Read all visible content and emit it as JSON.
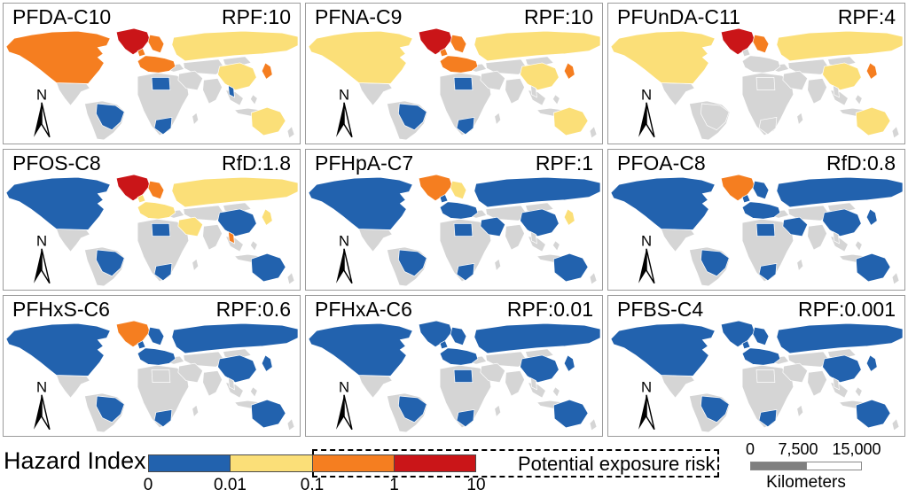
{
  "chart_data": {
    "type": "choropleth",
    "layout": "3x3 small multiples, world maps",
    "colors": {
      "blue": "#2262AE",
      "yellow": "#FBDF78",
      "orange": "#F57E20",
      "red": "#CA1518",
      "gray": "#D5D5D5"
    },
    "legend_bins": [
      {
        "color": "blue",
        "range": "0 to 0.01"
      },
      {
        "color": "yellow",
        "range": "0.01 to 0.1"
      },
      {
        "color": "orange",
        "range": "0.1 to 1"
      },
      {
        "color": "red",
        "range": "1 to 10"
      }
    ],
    "no_data_color": "gray",
    "panels": [
      {
        "compound": "PFDA-C10",
        "potency_label": "RPF:10",
        "regions": {
          "greenland": "red",
          "north_america": "orange",
          "brazil": "blue",
          "libya": "blue",
          "south_africa": "blue",
          "scandinavia": "orange",
          "western_europe": "orange",
          "russia": "yellow",
          "china": "yellow",
          "japan": "orange",
          "thailand": "blue",
          "middle_east": "gray",
          "australia": "yellow"
        }
      },
      {
        "compound": "PFNA-C9",
        "potency_label": "RPF:10",
        "regions": {
          "greenland": "red",
          "north_america": "yellow",
          "brazil": "blue",
          "libya": "blue",
          "south_africa": "blue",
          "scandinavia": "orange",
          "western_europe": "orange",
          "russia": "yellow",
          "china": "yellow",
          "japan": "orange",
          "thailand": "gray",
          "middle_east": "gray",
          "australia": "yellow"
        }
      },
      {
        "compound": "PFUnDA-C11",
        "potency_label": "RPF:4",
        "regions": {
          "greenland": "red",
          "north_america": "yellow",
          "brazil": "gray",
          "libya": "gray",
          "south_africa": "gray",
          "scandinavia": "orange",
          "western_europe": "gray",
          "russia": "yellow",
          "china": "yellow",
          "japan": "orange",
          "thailand": "gray",
          "middle_east": "gray",
          "australia": "yellow"
        }
      },
      {
        "compound": "PFOS-C8",
        "potency_label": "RfD:1.8",
        "regions": {
          "greenland": "red",
          "north_america": "blue",
          "brazil": "blue",
          "libya": "blue",
          "south_africa": "blue",
          "scandinavia": "orange",
          "western_europe": "yellow",
          "russia": "yellow",
          "china": "blue",
          "japan": "yellow",
          "thailand": "orange",
          "middle_east": "yellow",
          "australia": "blue"
        }
      },
      {
        "compound": "PFHpA-C7",
        "potency_label": "RPF:1",
        "regions": {
          "greenland": "orange",
          "north_america": "blue",
          "brazil": "blue",
          "libya": "blue",
          "south_africa": "blue",
          "scandinavia": "yellow",
          "western_europe": "blue",
          "russia": "blue",
          "china": "blue",
          "japan": "yellow",
          "thailand": "gray",
          "middle_east": "blue",
          "australia": "blue"
        }
      },
      {
        "compound": "PFOA-C8",
        "potency_label": "RfD:0.8",
        "regions": {
          "greenland": "orange",
          "north_america": "blue",
          "brazil": "blue",
          "libya": "blue",
          "south_africa": "blue",
          "scandinavia": "blue",
          "western_europe": "blue",
          "russia": "blue",
          "china": "blue",
          "japan": "blue",
          "thailand": "gray",
          "middle_east": "blue",
          "australia": "blue"
        }
      },
      {
        "compound": "PFHxS-C6",
        "potency_label": "RPF:0.6",
        "regions": {
          "greenland": "orange",
          "north_america": "blue",
          "brazil": "blue",
          "libya": "gray",
          "south_africa": "blue",
          "scandinavia": "blue",
          "western_europe": "blue",
          "russia": "blue",
          "china": "blue",
          "japan": "blue",
          "thailand": "gray",
          "middle_east": "gray",
          "australia": "blue"
        }
      },
      {
        "compound": "PFHxA-C6",
        "potency_label": "RPF:0.01",
        "regions": {
          "greenland": "blue",
          "north_america": "blue",
          "brazil": "blue",
          "libya": "blue",
          "south_africa": "blue",
          "scandinavia": "blue",
          "western_europe": "blue",
          "russia": "blue",
          "china": "blue",
          "japan": "blue",
          "thailand": "gray",
          "middle_east": "gray",
          "australia": "blue"
        }
      },
      {
        "compound": "PFBS-C4",
        "potency_label": "RPF:0.001",
        "regions": {
          "greenland": "blue",
          "north_america": "blue",
          "brazil": "blue",
          "libya": "gray",
          "south_africa": "blue",
          "scandinavia": "blue",
          "western_europe": "blue",
          "russia": "blue",
          "china": "blue",
          "japan": "blue",
          "thailand": "gray",
          "middle_east": "gray",
          "australia": "blue"
        }
      }
    ],
    "no_data_regions": [
      "mexico_central_america",
      "south_america_other",
      "africa_other",
      "turkey",
      "central_asia",
      "mongolia",
      "india",
      "southeast_asia"
    ]
  },
  "legend": {
    "title": "Hazard Index",
    "ticks": [
      "0",
      "0.01",
      "0.1",
      "1",
      "10"
    ],
    "risk_label": "Potential exposure risk"
  },
  "scalebar": {
    "ticks": [
      "0",
      "7,500",
      "15,000"
    ],
    "unit": "Kilometers"
  },
  "north_arrow_label": "N"
}
